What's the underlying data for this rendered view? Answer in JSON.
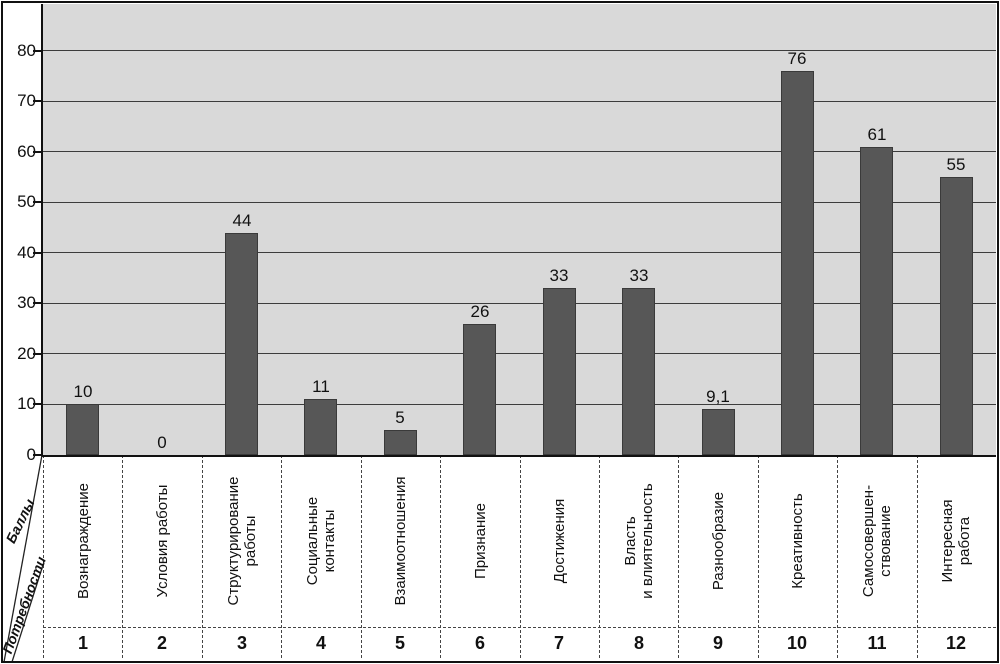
{
  "chart_data": {
    "type": "bar",
    "title": "",
    "ylabel": "Баллы",
    "xlabel": "Потребности",
    "categories": [
      {
        "num": "1",
        "label": "Вознаграждение",
        "lines": [
          "Вознаграждение"
        ]
      },
      {
        "num": "2",
        "label": "Условия работы",
        "lines": [
          "Условия работы"
        ]
      },
      {
        "num": "3",
        "label": "Структурирование работы",
        "lines": [
          "Структурирование",
          "работы"
        ]
      },
      {
        "num": "4",
        "label": "Социальные контакты",
        "lines": [
          "Социальные",
          "контакты"
        ]
      },
      {
        "num": "5",
        "label": "Взаимоотношения",
        "lines": [
          "Взаимоотношения"
        ]
      },
      {
        "num": "6",
        "label": "Признание",
        "lines": [
          "Признание"
        ]
      },
      {
        "num": "7",
        "label": "Достижения",
        "lines": [
          "Достижения"
        ]
      },
      {
        "num": "8",
        "label": "Власть и влиятельность",
        "lines": [
          "Власть",
          "и влиятельность"
        ]
      },
      {
        "num": "9",
        "label": "Разнообразие",
        "lines": [
          "Разнообразие"
        ]
      },
      {
        "num": "10",
        "label": "Креативность",
        "lines": [
          "Креативность"
        ]
      },
      {
        "num": "11",
        "label": "Самосовершенствование",
        "lines": [
          "Самосовершен-",
          "ствование"
        ]
      },
      {
        "num": "12",
        "label": "Интересная работа",
        "lines": [
          "Интересная",
          "работа"
        ]
      }
    ],
    "values": [
      10,
      0,
      44,
      11,
      5,
      26,
      33,
      33,
      9.1,
      76,
      61,
      55
    ],
    "value_labels": [
      "10",
      "0",
      "44",
      "11",
      "5",
      "26",
      "33",
      "33",
      "9,1",
      "76",
      "61",
      "55"
    ],
    "yticks": [
      0,
      10,
      20,
      30,
      40,
      50,
      60,
      70,
      80
    ],
    "ylim": [
      0,
      89
    ],
    "grid": true,
    "legend": "none",
    "bar_color": "#575757",
    "plot_bg": "#d9d9d9"
  }
}
